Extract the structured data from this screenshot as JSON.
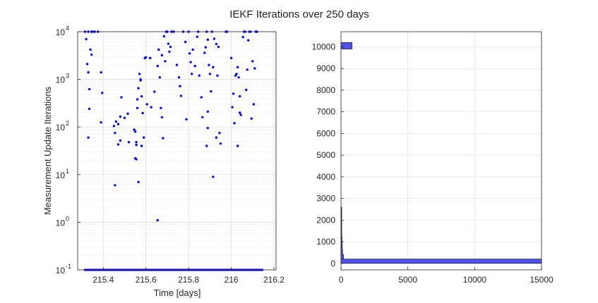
{
  "figure": {
    "title": "IEKF Iterations over 250 days"
  },
  "chart_data": [
    {
      "type": "scatter",
      "xlabel": "Time [days]",
      "ylabel": "Measurement Update Iterations",
      "xlim": [
        215.28,
        216.21
      ],
      "ylim": [
        0.1,
        10000
      ],
      "yscale": "log",
      "grid": true,
      "minor_grid": true,
      "marker_color": "#0000ff",
      "x_ticks": [
        "215.4",
        "215.6",
        "215.8",
        "216",
        "216.2"
      ],
      "y_tick_bases": [
        "10",
        "10",
        "10",
        "10",
        "10",
        "10"
      ],
      "y_tick_exponents": [
        "-1",
        "0",
        "1",
        "2",
        "3",
        "4"
      ],
      "baseline_value": 0.1,
      "baseline_range": [
        215.31,
        216.15
      ],
      "points": [
        [
          215.315,
          10000
        ],
        [
          215.33,
          10000
        ],
        [
          215.345,
          10000
        ],
        [
          215.36,
          10000
        ],
        [
          215.375,
          10000
        ],
        [
          215.32,
          7000
        ],
        [
          215.34,
          4200
        ],
        [
          215.345,
          3300
        ],
        [
          215.325,
          2100
        ],
        [
          215.33,
          1400
        ],
        [
          215.335,
          620
        ],
        [
          215.335,
          240
        ],
        [
          215.33,
          60
        ],
        [
          215.39,
          1400
        ],
        [
          215.395,
          520
        ],
        [
          215.39,
          125
        ],
        [
          215.45,
          105
        ],
        [
          215.46,
          130
        ],
        [
          215.47,
          115
        ],
        [
          215.455,
          75
        ],
        [
          215.47,
          43
        ],
        [
          215.48,
          52
        ],
        [
          215.48,
          165
        ],
        [
          215.5,
          155
        ],
        [
          215.485,
          420
        ],
        [
          215.515,
          190
        ],
        [
          215.52,
          48
        ],
        [
          215.545,
          88
        ],
        [
          215.55,
          80
        ],
        [
          215.555,
          48
        ],
        [
          215.555,
          42
        ],
        [
          215.55,
          22
        ],
        [
          215.555,
          21
        ],
        [
          215.56,
          380
        ],
        [
          215.56,
          250
        ],
        [
          215.57,
          1300
        ],
        [
          215.575,
          1000
        ],
        [
          215.575,
          950
        ],
        [
          215.565,
          650
        ],
        [
          215.58,
          440
        ],
        [
          215.585,
          195
        ],
        [
          215.59,
          60
        ],
        [
          215.58,
          40
        ],
        [
          215.595,
          2800
        ],
        [
          215.6,
          2900
        ],
        [
          215.605,
          300
        ],
        [
          215.625,
          260
        ],
        [
          215.64,
          550
        ],
        [
          215.655,
          1900
        ],
        [
          215.66,
          4200
        ],
        [
          215.665,
          1100
        ],
        [
          215.67,
          250
        ],
        [
          215.675,
          3200
        ],
        [
          215.685,
          8000
        ],
        [
          215.69,
          2400
        ],
        [
          215.695,
          10000
        ],
        [
          215.7,
          10000
        ],
        [
          215.705,
          5600
        ],
        [
          215.71,
          3800
        ],
        [
          215.715,
          4800
        ],
        [
          215.72,
          10000
        ],
        [
          215.73,
          10000
        ],
        [
          215.745,
          2000
        ],
        [
          215.755,
          1100
        ],
        [
          215.76,
          720
        ],
        [
          215.765,
          450
        ],
        [
          215.775,
          10000
        ],
        [
          215.785,
          6100
        ],
        [
          215.8,
          10000
        ],
        [
          215.805,
          3500
        ],
        [
          215.81,
          2300
        ],
        [
          215.815,
          1300
        ],
        [
          215.82,
          4200
        ],
        [
          215.83,
          1900
        ],
        [
          215.84,
          7800
        ],
        [
          215.845,
          10000
        ],
        [
          215.85,
          1200
        ],
        [
          215.86,
          420
        ],
        [
          215.865,
          160
        ],
        [
          215.875,
          3600
        ],
        [
          215.88,
          4700
        ],
        [
          215.885,
          10000
        ],
        [
          215.89,
          6800
        ],
        [
          215.895,
          2000
        ],
        [
          215.9,
          1300
        ],
        [
          215.905,
          560
        ],
        [
          215.91,
          10000
        ],
        [
          215.915,
          1800
        ],
        [
          215.92,
          7100
        ],
        [
          215.93,
          5500
        ],
        [
          215.935,
          1200
        ],
        [
          215.94,
          4800
        ],
        [
          215.89,
          210
        ],
        [
          215.89,
          95
        ],
        [
          215.885,
          40
        ],
        [
          215.915,
          9
        ],
        [
          215.93,
          60
        ],
        [
          215.945,
          75
        ],
        [
          215.95,
          45
        ],
        [
          215.975,
          10000
        ],
        [
          215.98,
          10000
        ],
        [
          216.0,
          2800
        ],
        [
          216.005,
          260
        ],
        [
          216.01,
          500
        ],
        [
          216.015,
          120
        ],
        [
          216.02,
          1200
        ],
        [
          216.025,
          1300
        ],
        [
          216.03,
          1800
        ],
        [
          216.035,
          1100
        ],
        [
          216.04,
          440
        ],
        [
          216.045,
          180
        ],
        [
          216.04,
          200
        ],
        [
          216.055,
          7700
        ],
        [
          216.06,
          10000
        ],
        [
          216.07,
          600
        ],
        [
          216.08,
          6600
        ],
        [
          216.085,
          10000
        ],
        [
          216.09,
          10000
        ],
        [
          216.1,
          2400
        ],
        [
          216.105,
          300
        ],
        [
          216.11,
          1700
        ],
        [
          216.095,
          150
        ],
        [
          216.03,
          40
        ],
        [
          215.455,
          6
        ],
        [
          215.565,
          7
        ],
        [
          215.655,
          1.1
        ],
        [
          215.35,
          10000
        ],
        [
          215.62,
          2800
        ],
        [
          215.68,
          58
        ],
        [
          215.675,
          160
        ],
        [
          215.79,
          145
        ],
        [
          216.065,
          10000
        ],
        [
          216.075,
          1600
        ],
        [
          216.115,
          10000
        ],
        [
          216.12,
          10000
        ]
      ]
    },
    {
      "type": "bar",
      "orientation": "horizontal",
      "xlim": [
        0,
        15000
      ],
      "ylim": [
        -300,
        10700
      ],
      "grid": true,
      "bar_color": "#5050f0",
      "x_ticks": [
        "0",
        "5000",
        "10000",
        "15000"
      ],
      "y_ticks": [
        "0",
        "1000",
        "2000",
        "3000",
        "4000",
        "5000",
        "6000",
        "7000",
        "8000",
        "9000",
        "10000"
      ],
      "bins": [
        {
          "y0": 0,
          "y1": 200,
          "value": 15000
        },
        {
          "y0": 200,
          "y1": 400,
          "value": 200
        },
        {
          "y0": 400,
          "y1": 600,
          "value": 120
        },
        {
          "y0": 600,
          "y1": 800,
          "value": 100
        },
        {
          "y0": 800,
          "y1": 1000,
          "value": 90
        },
        {
          "y0": 1000,
          "y1": 1200,
          "value": 80
        },
        {
          "y0": 1200,
          "y1": 1400,
          "value": 60
        },
        {
          "y0": 1400,
          "y1": 1600,
          "value": 50
        },
        {
          "y0": 1600,
          "y1": 1800,
          "value": 40
        },
        {
          "y0": 1800,
          "y1": 2000,
          "value": 40
        },
        {
          "y0": 2000,
          "y1": 2200,
          "value": 30
        },
        {
          "y0": 2200,
          "y1": 2400,
          "value": 30
        },
        {
          "y0": 2400,
          "y1": 2600,
          "value": 30
        },
        {
          "y0": 9900,
          "y1": 10200,
          "value": 820
        }
      ]
    }
  ]
}
